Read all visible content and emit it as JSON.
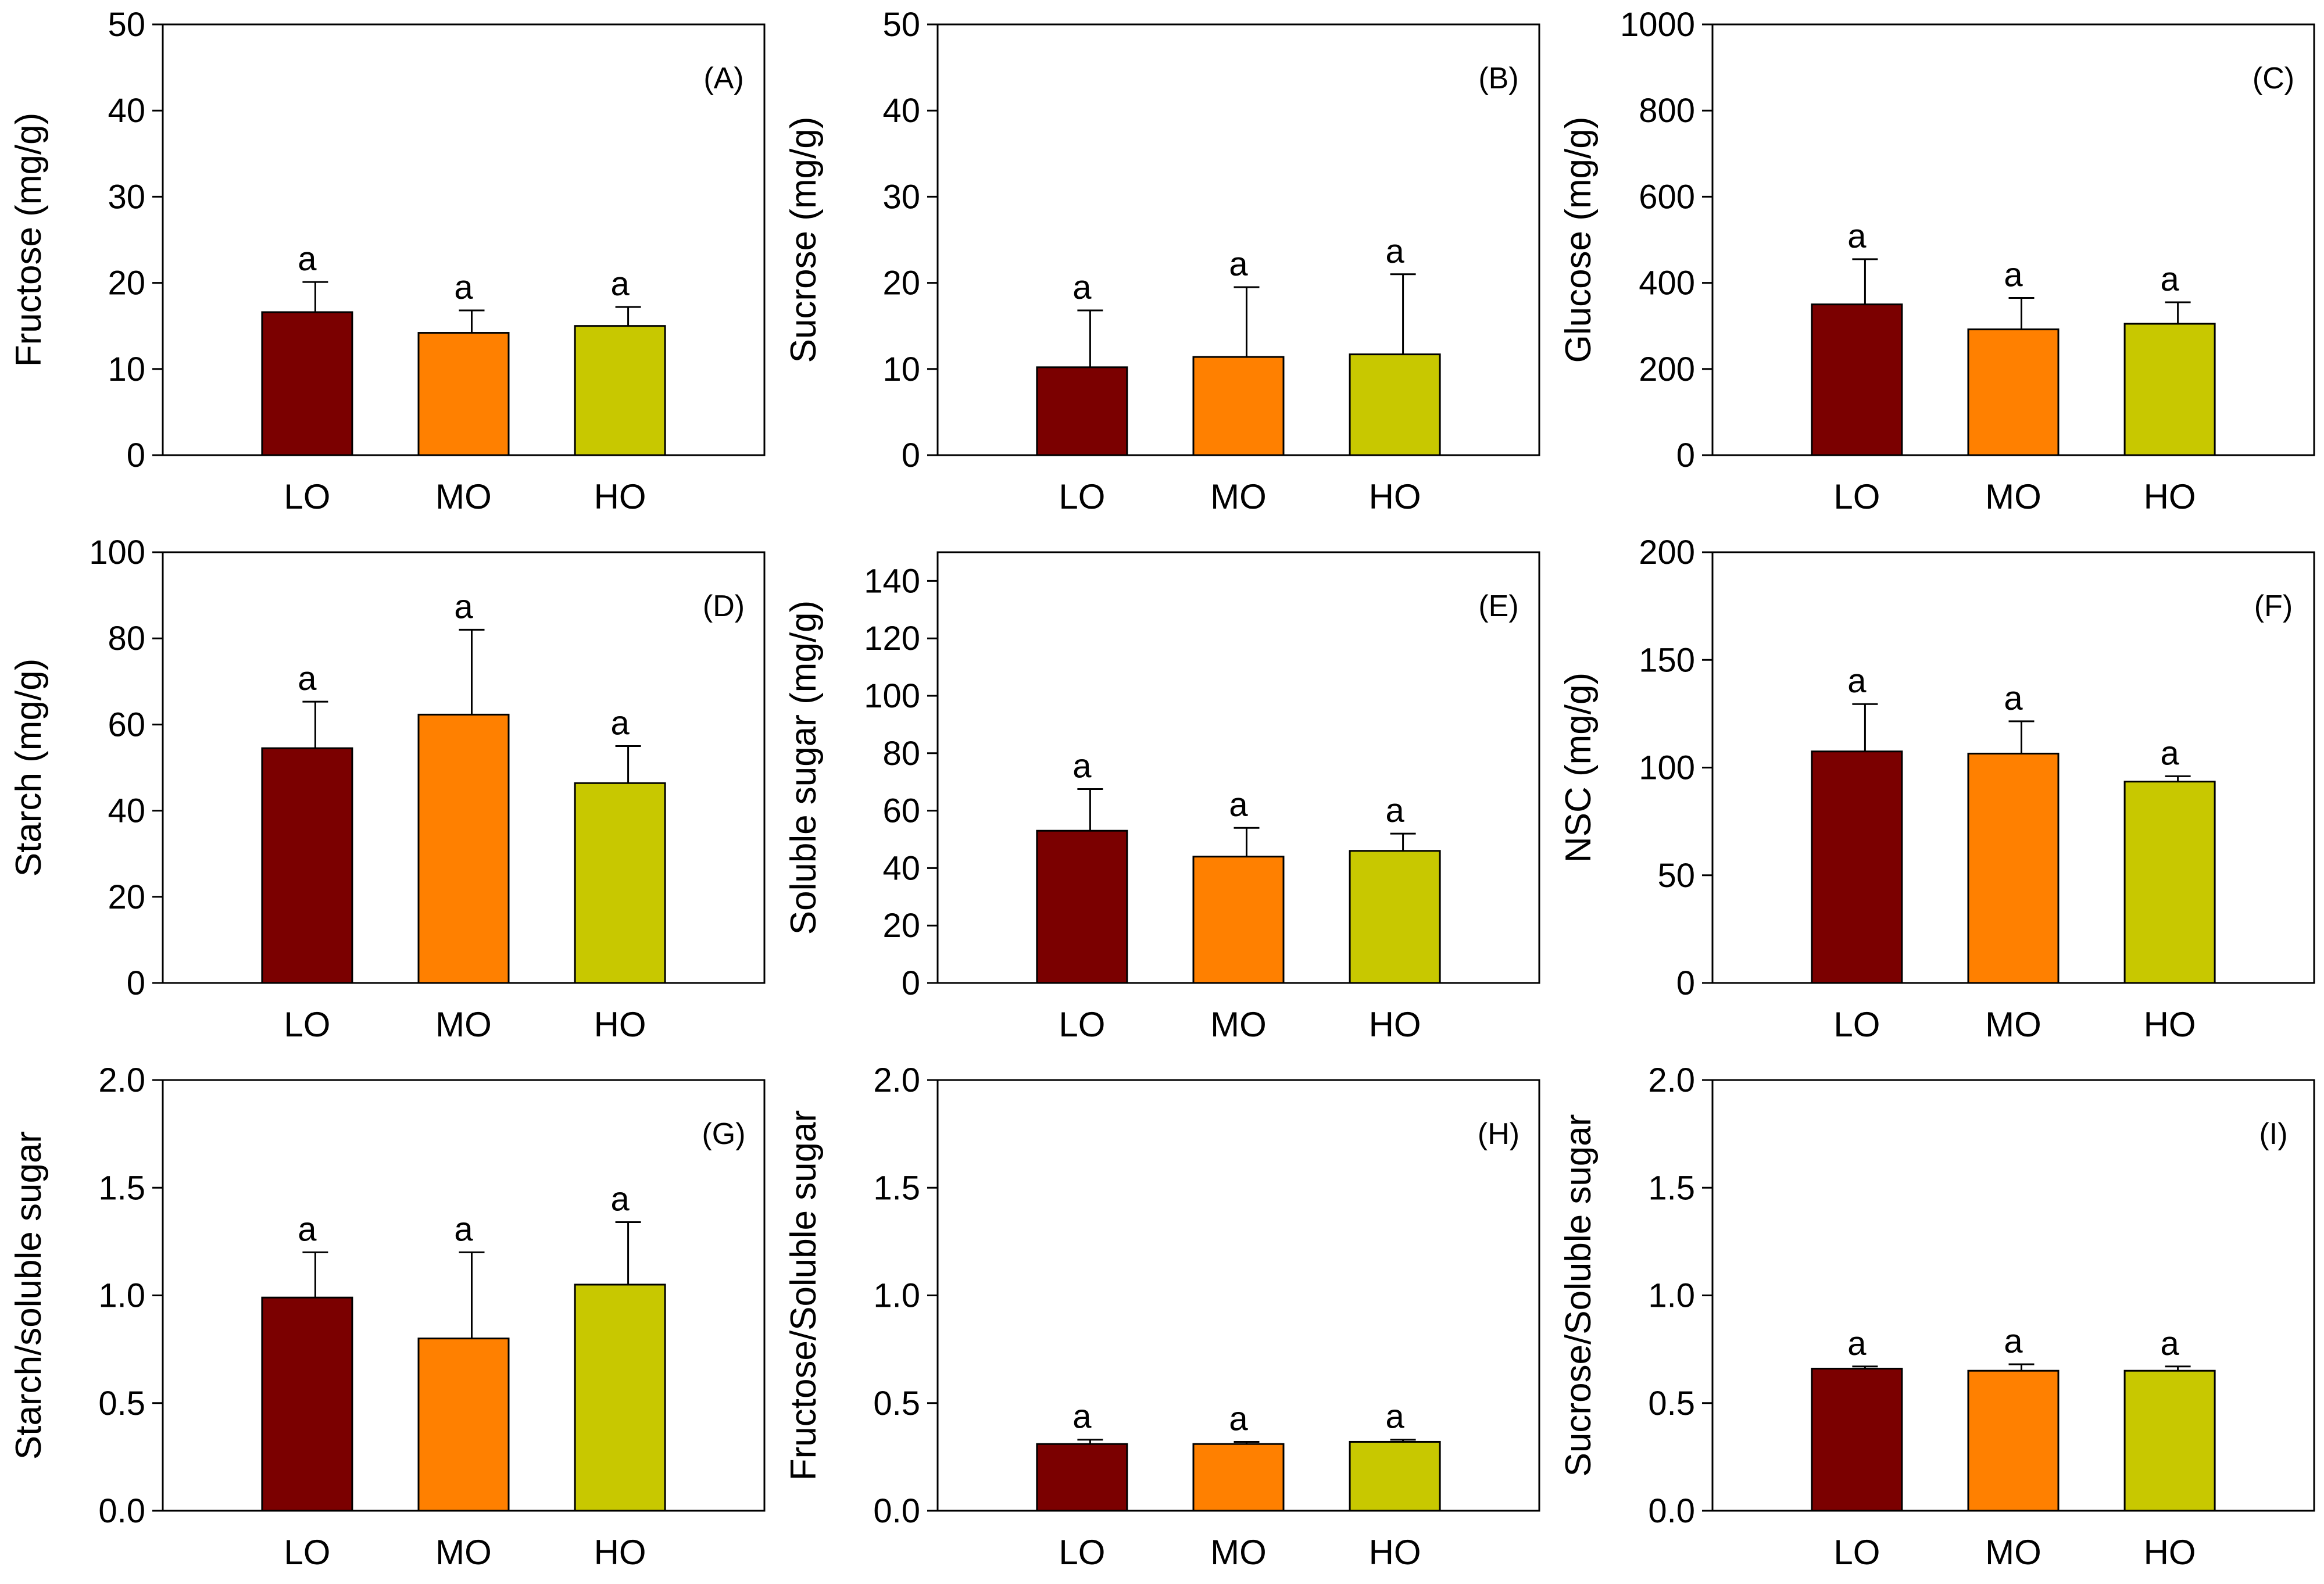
{
  "colors": {
    "LO": "#7b0000",
    "MO": "#ff8000",
    "HO": "#c8c800"
  },
  "chart_data": [
    {
      "type": "bar",
      "panel": "(A)",
      "panel_letter": "A",
      "ylabel": "Fructose (mg/g)",
      "ylim": [
        0,
        50
      ],
      "yticks": [
        "0",
        "10",
        "20",
        "30",
        "40",
        "50"
      ],
      "yticks_values": [
        0,
        10,
        20,
        30,
        40,
        50
      ],
      "categories": [
        "LO",
        "MO",
        "HO"
      ],
      "values": [
        16.6,
        14.2,
        15.0
      ],
      "errors": [
        3.5,
        2.6,
        2.2
      ],
      "sig": [
        "a",
        "a",
        "a"
      ]
    },
    {
      "type": "bar",
      "panel": "(B)",
      "panel_letter": "B",
      "ylabel": "Sucrose (mg/g)",
      "ylim": [
        0,
        50
      ],
      "yticks": [
        "0",
        "10",
        "20",
        "30",
        "40",
        "50"
      ],
      "yticks_values": [
        0,
        10,
        20,
        30,
        40,
        50
      ],
      "categories": [
        "LO",
        "MO",
        "HO"
      ],
      "values": [
        10.2,
        11.4,
        11.7
      ],
      "errors": [
        6.6,
        8.1,
        9.3
      ],
      "sig": [
        "a",
        "a",
        "a"
      ]
    },
    {
      "type": "bar",
      "panel": "(C)",
      "panel_letter": "C",
      "ylabel": "Glucose (mg/g)",
      "ylim": [
        0,
        1000
      ],
      "yticks": [
        "0",
        "200",
        "400",
        "600",
        "800",
        "1000"
      ],
      "yticks_values": [
        0,
        200,
        400,
        600,
        800,
        1000
      ],
      "categories": [
        "LO",
        "MO",
        "HO"
      ],
      "values": [
        350,
        292,
        305
      ],
      "errors": [
        105,
        73,
        50
      ],
      "sig": [
        "a",
        "a",
        "a"
      ]
    },
    {
      "type": "bar",
      "panel": "(D)",
      "panel_letter": "D",
      "ylabel": "Starch (mg/g)",
      "ylim": [
        0,
        100
      ],
      "yticks": [
        "0",
        "20",
        "40",
        "60",
        "80",
        "100"
      ],
      "yticks_values": [
        0,
        20,
        40,
        60,
        80,
        100
      ],
      "categories": [
        "LO",
        "MO",
        "HO"
      ],
      "values": [
        54.5,
        62.3,
        46.4
      ],
      "errors": [
        10.8,
        19.7,
        8.6
      ],
      "sig": [
        "a",
        "a",
        "a"
      ]
    },
    {
      "type": "bar",
      "panel": "(E)",
      "panel_letter": "E",
      "ylabel": "Soluble sugar (mg/g)",
      "ylim": [
        0,
        150
      ],
      "yticks": [
        "0",
        "20",
        "40",
        "60",
        "80",
        "100",
        "120",
        "140"
      ],
      "yticks_values": [
        0,
        20,
        40,
        60,
        80,
        100,
        120,
        140
      ],
      "categories": [
        "LO",
        "MO",
        "HO"
      ],
      "values": [
        53,
        44,
        46
      ],
      "errors": [
        14.5,
        10,
        6
      ],
      "sig": [
        "a",
        "a",
        "a"
      ]
    },
    {
      "type": "bar",
      "panel": "(F)",
      "panel_letter": "F",
      "ylabel": "NSC (mg/g)",
      "ylim": [
        0,
        200
      ],
      "yticks": [
        "0",
        "50",
        "100",
        "150",
        "200"
      ],
      "yticks_values": [
        0,
        50,
        100,
        150,
        200
      ],
      "categories": [
        "LO",
        "MO",
        "HO"
      ],
      "values": [
        107.5,
        106.5,
        93.5
      ],
      "errors": [
        22,
        15,
        2.5
      ],
      "sig": [
        "a",
        "a",
        "a"
      ]
    },
    {
      "type": "bar",
      "panel": "(G)",
      "panel_letter": "G",
      "ylabel": "Starch/soluble sugar",
      "ylim": [
        0,
        2.0
      ],
      "yticks": [
        "0.0",
        "0.5",
        "1.0",
        "1.5",
        "2.0"
      ],
      "yticks_values": [
        0,
        0.5,
        1.0,
        1.5,
        2.0
      ],
      "categories": [
        "LO",
        "MO",
        "HO"
      ],
      "values": [
        0.99,
        0.8,
        1.05
      ],
      "errors": [
        0.21,
        0.4,
        0.29
      ],
      "sig": [
        "a",
        "a",
        "a"
      ]
    },
    {
      "type": "bar",
      "panel": "(H)",
      "panel_letter": "H",
      "ylabel": "Fructose/Soluble sugar",
      "ylim": [
        0,
        2.0
      ],
      "yticks": [
        "0.0",
        "0.5",
        "1.0",
        "1.5",
        "2.0"
      ],
      "yticks_values": [
        0,
        0.5,
        1.0,
        1.5,
        2.0
      ],
      "categories": [
        "LO",
        "MO",
        "HO"
      ],
      "values": [
        0.31,
        0.31,
        0.32
      ],
      "errors": [
        0.02,
        0.01,
        0.01
      ],
      "sig": [
        "a",
        "a",
        "a"
      ]
    },
    {
      "type": "bar",
      "panel": "(I)",
      "panel_letter": "I",
      "ylabel": "Sucrose/Soluble sugar",
      "ylim": [
        0,
        2.0
      ],
      "yticks": [
        "0.0",
        "0.5",
        "1.0",
        "1.5",
        "2.0"
      ],
      "yticks_values": [
        0,
        0.5,
        1.0,
        1.5,
        2.0
      ],
      "categories": [
        "LO",
        "MO",
        "HO"
      ],
      "values": [
        0.66,
        0.65,
        0.65
      ],
      "errors": [
        0.01,
        0.03,
        0.02
      ],
      "sig": [
        "a",
        "a",
        "a"
      ]
    }
  ]
}
